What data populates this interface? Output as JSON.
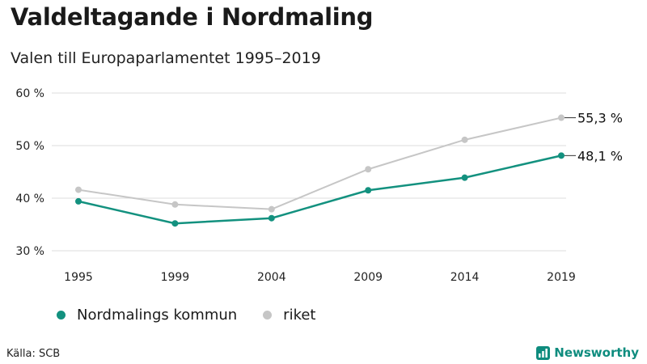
{
  "header": {
    "title": "Valdeltagande i Nordmaling",
    "subtitle": "Valen till Europaparlamentet 1995–2019"
  },
  "chart_data": {
    "type": "line",
    "x": [
      "1995",
      "1999",
      "2004",
      "2009",
      "2014",
      "2019"
    ],
    "y_ticks": [
      "30 %",
      "40 %",
      "50 %",
      "60 %"
    ],
    "ylim": [
      30,
      60
    ],
    "grid": "horizontal",
    "legend_position": "bottom-left",
    "series": [
      {
        "name": "Nordmalings kommun",
        "color": "#13917f",
        "values": [
          39.4,
          35.2,
          36.2,
          41.5,
          43.9,
          48.1
        ],
        "end_label": "48,1 %"
      },
      {
        "name": "riket",
        "color": "#c6c6c6",
        "values": [
          41.6,
          38.8,
          37.9,
          45.5,
          51.1,
          55.3
        ],
        "end_label": "55,3 %"
      }
    ]
  },
  "footer": {
    "source": "Källa: SCB",
    "brand": "Newsworthy",
    "brand_icon": "bar-chart-icon"
  }
}
